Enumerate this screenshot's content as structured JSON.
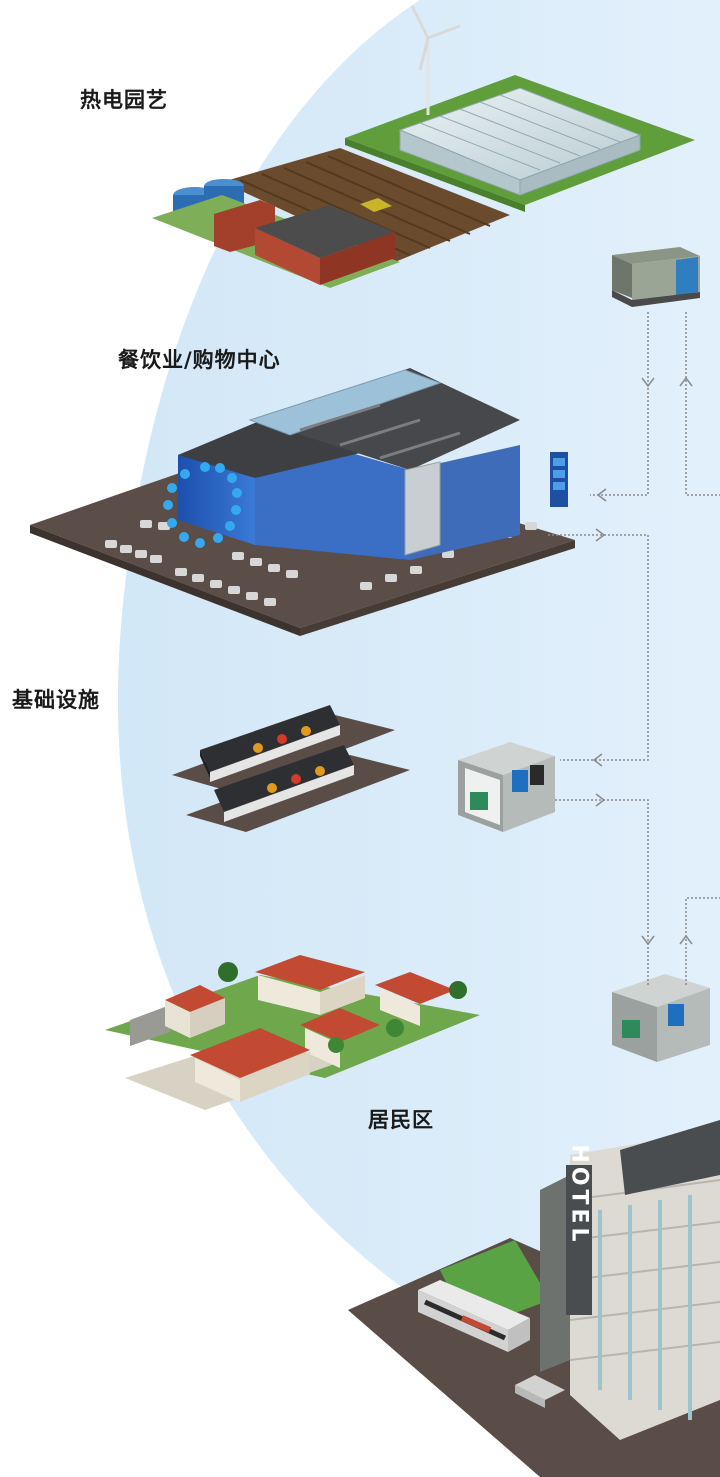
{
  "labels": {
    "greenhouse": "热电园艺",
    "shopping": "餐饮业/购物中心",
    "infrastructure": "基础设施",
    "residential": "居民区"
  },
  "hotel_sign": "HOTEL",
  "colors": {
    "bubble": "#ddeef9",
    "connector": "#8a8a8a",
    "accent_blue": "#2a63c6",
    "roof_red": "#c2432d"
  }
}
